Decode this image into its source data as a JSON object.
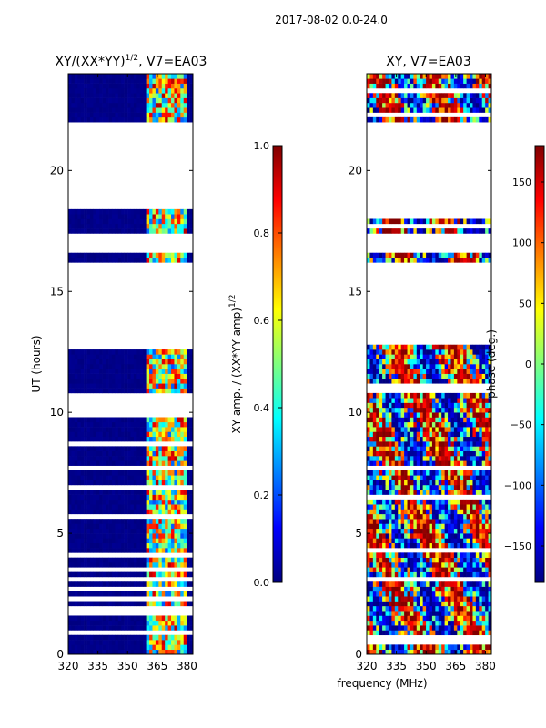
{
  "suptitle": "2017-08-02 0.0-24.0",
  "chart_data": [
    {
      "type": "heatmap",
      "title_base": "XY/(XX*YY)",
      "title_exponent": "1/2",
      "title_suffix": ", V7=EA03",
      "xlabel": "",
      "ylabel": "UT (hours)",
      "xlim": [
        320,
        383
      ],
      "ylim": [
        0,
        24
      ],
      "xticks": [
        320,
        335,
        350,
        365,
        380
      ],
      "yticks": [
        0,
        5,
        10,
        15,
        20
      ],
      "colorscale": "jet",
      "value_range": [
        0,
        1
      ],
      "colorbar_label_base": "XY amp. / (XX*YY amp)",
      "colorbar_label_exponent": "1/2",
      "colorbar_ticks": [
        0.0,
        0.2,
        0.4,
        0.6,
        0.8,
        1.0
      ],
      "colorbar_tick_labels": [
        "0.0",
        "0.2",
        "0.4",
        "0.6",
        "0.8",
        "1.0"
      ],
      "data_gaps_hours": [
        [
          12.7,
          16.2
        ],
        [
          16.5,
          17.4
        ],
        [
          18.3,
          21.9
        ]
      ],
      "bright_band_mhz": [
        360,
        380
      ]
    },
    {
      "type": "heatmap",
      "title": "XY, V7=EA03",
      "xlabel": "frequency (MHz)",
      "ylabel": "",
      "xlim": [
        320,
        383
      ],
      "ylim": [
        0,
        24
      ],
      "xticks": [
        320,
        335,
        350,
        365,
        380
      ],
      "yticks": [
        0,
        5,
        10,
        15,
        20
      ],
      "colorscale": "jet",
      "value_range": [
        -180,
        180
      ],
      "colorbar_label": "phase (deg.)",
      "colorbar_ticks": [
        -150,
        -100,
        -50,
        0,
        50,
        100,
        150
      ],
      "colorbar_tick_labels": [
        "−150",
        "−100",
        "−50",
        "0",
        "50",
        "100",
        "150"
      ],
      "data_gaps_hours": [
        [
          12.7,
          16.2
        ],
        [
          16.5,
          17.4
        ],
        [
          18.3,
          21.9
        ]
      ]
    }
  ]
}
